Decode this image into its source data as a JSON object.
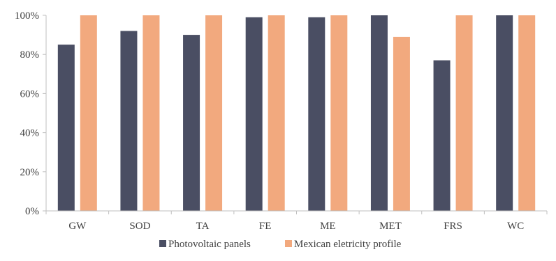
{
  "chart_data": {
    "type": "bar",
    "title": "",
    "xlabel": "",
    "ylabel": "",
    "ylim": [
      0,
      100
    ],
    "yticks": [
      "0%",
      "20%",
      "40%",
      "60%",
      "80%",
      "100%"
    ],
    "ytick_values": [
      0,
      20,
      40,
      60,
      80,
      100
    ],
    "grid": false,
    "legend_position": "bottom",
    "categories": [
      "GW",
      "SOD",
      "TA",
      "FE",
      "ME",
      "MET",
      "FRS",
      "WC"
    ],
    "series": [
      {
        "name": "Photovoltaic panels",
        "color": "#4a4e63",
        "values": [
          85,
          92,
          90,
          99,
          99,
          100,
          77,
          100
        ]
      },
      {
        "name": "Mexican eletricity profile",
        "color": "#f2a97e",
        "values": [
          100,
          100,
          100,
          100,
          100,
          89,
          100,
          100
        ]
      }
    ]
  }
}
